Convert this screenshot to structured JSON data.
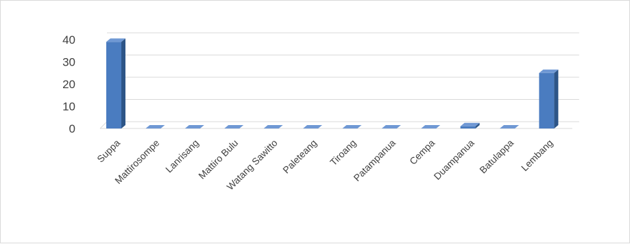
{
  "chart_data": {
    "type": "bar",
    "style": "3d-column",
    "categories": [
      "Suppa",
      "Mattirosompe",
      "Lanrisang",
      "Mattiro Bulu",
      "Watang Sawitto",
      "Paleteang",
      "Tiroang",
      "Patampanua",
      "Cempa",
      "Duampanua",
      "Batulappa",
      "Lembang"
    ],
    "values": [
      39,
      0,
      0,
      0,
      0,
      0,
      0,
      0,
      0,
      1,
      0,
      25
    ],
    "ylim": [
      0,
      40
    ],
    "yticks": [
      0,
      10,
      20,
      30,
      40
    ],
    "grid": true,
    "legend": "none",
    "colors": {
      "front": "#4a7cc0",
      "side": "#2d5587",
      "top": "#6f98d4",
      "grid": "#d9d9d9",
      "axis": "#bfbfbf",
      "text": "#404040"
    }
  }
}
